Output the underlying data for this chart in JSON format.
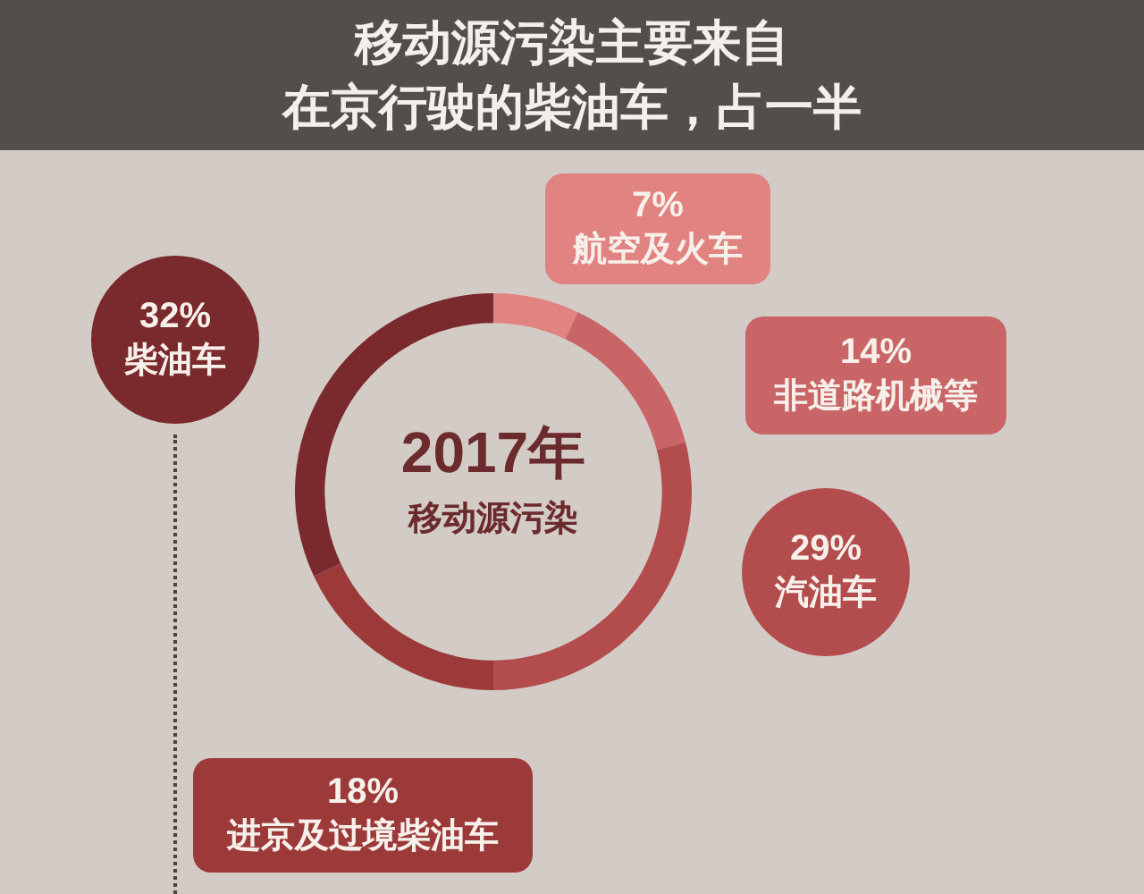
{
  "chart_data": {
    "type": "donut",
    "title": "移动源污染主要来自",
    "subtitle": "在京行驶的柴油车，占一半",
    "categories": [
      "航空及火车",
      "非道路机械等",
      "汽油车",
      "进京及过境柴油车",
      "柴油车"
    ],
    "values": [
      7,
      14,
      29,
      18,
      32
    ],
    "colors": [
      "#e08381",
      "#c96567",
      "#b34c4d",
      "#9c3a3a",
      "#7a2a2c"
    ],
    "value_labels": [
      "7%",
      "14%",
      "29%",
      "18%",
      "32%"
    ],
    "annotations": [
      "2017年",
      "移动源污染"
    ]
  }
}
